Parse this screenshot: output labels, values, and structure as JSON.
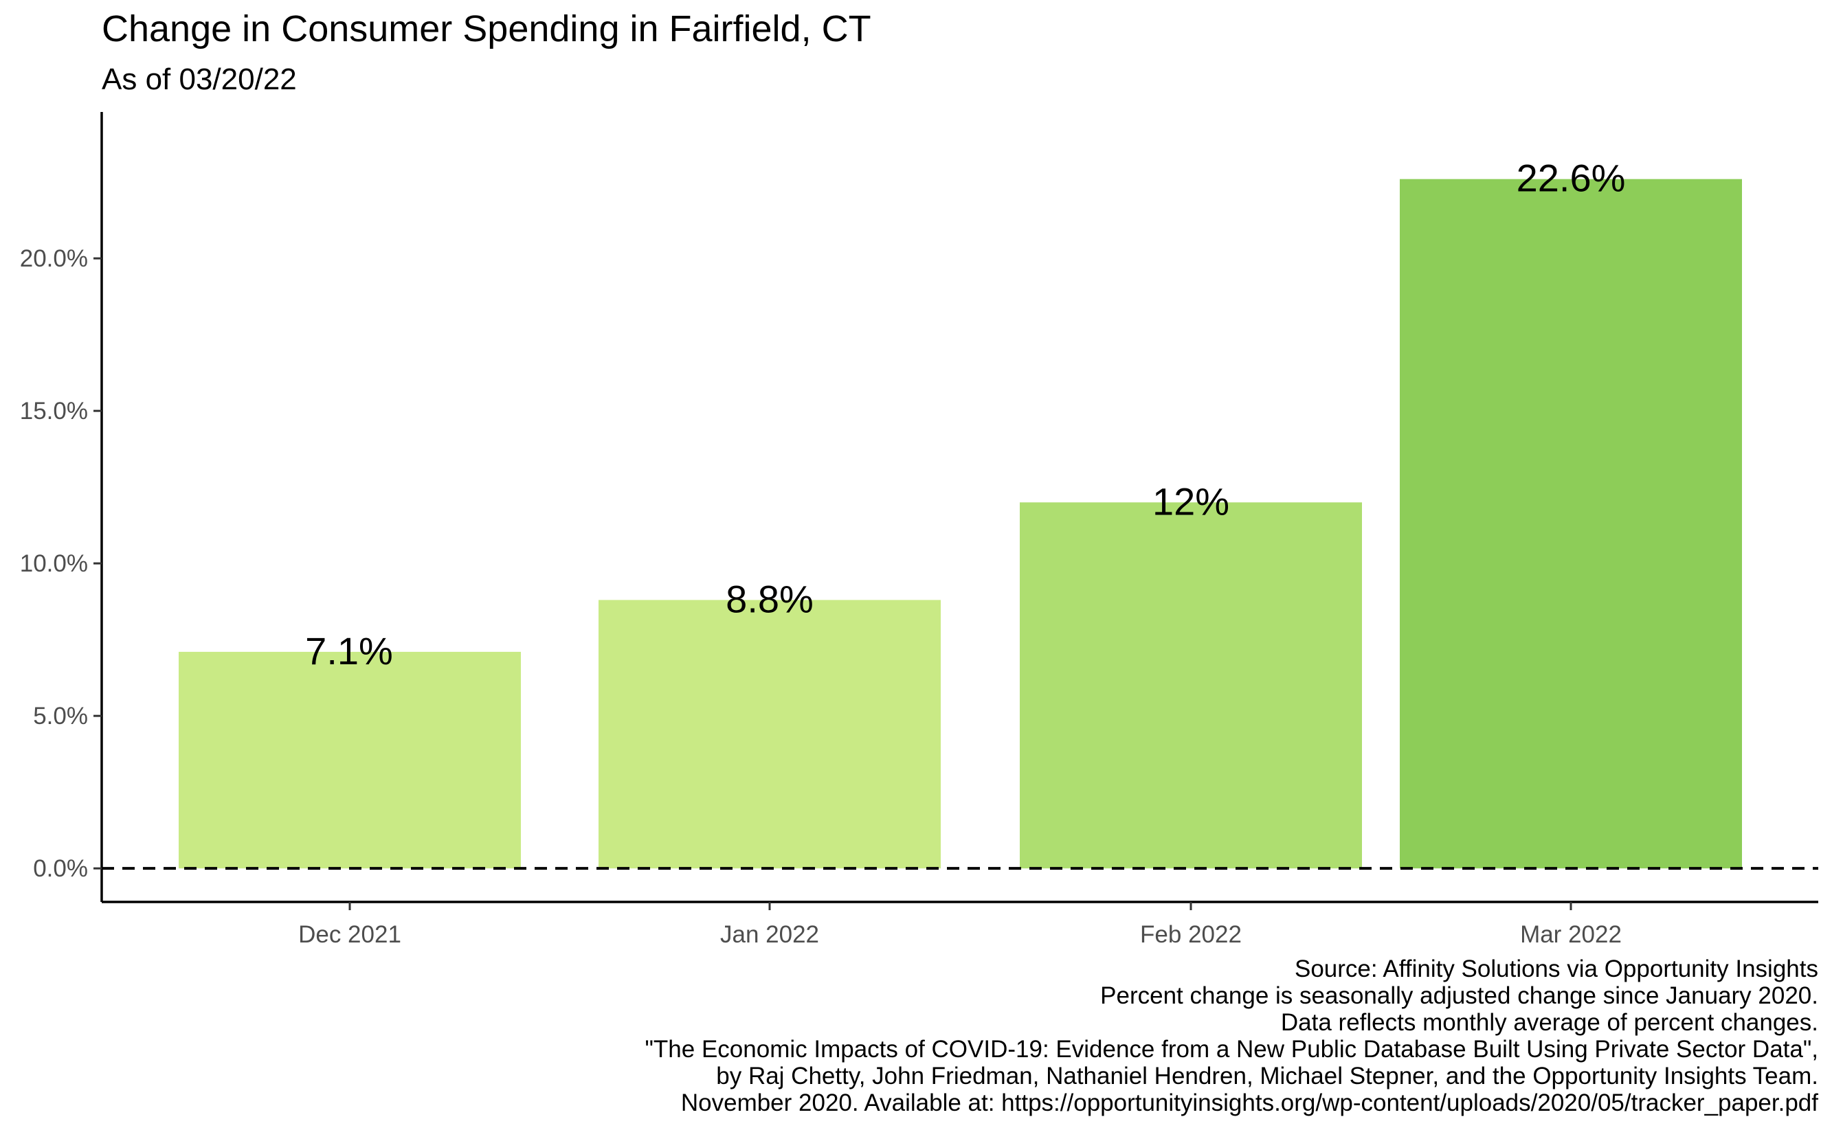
{
  "chart_data": {
    "type": "bar",
    "title": "Change in Consumer Spending in Fairfield, CT",
    "subtitle": "As of 03/20/22",
    "xlabel": "",
    "ylabel": "",
    "categories": [
      "Dec 2021",
      "Jan 2022",
      "Feb 2022",
      "Mar 2022"
    ],
    "values": [
      7.1,
      8.8,
      12.0,
      22.6
    ],
    "value_labels": [
      "7.1%",
      "8.8%",
      "12%",
      "22.6%"
    ],
    "bar_colors": [
      "#c9ea85",
      "#c9ea85",
      "#aede70",
      "#8dcd58"
    ],
    "ylim": [
      -1.1,
      24.8
    ],
    "y_ticks": [
      0,
      5,
      10,
      15,
      20
    ],
    "y_tick_labels": [
      "0.0%",
      "5.0%",
      "10.0%",
      "15.0%",
      "20.0%"
    ],
    "reference_line": {
      "y": 0,
      "style": "dashed"
    },
    "grid": false,
    "legend": "none",
    "caption": [
      "Source: Affinity Solutions via Opportunity Insights",
      "Percent change is seasonally adjusted change since January 2020.",
      "Data reflects monthly average of percent changes.",
      "\"The Economic Impacts of COVID-19: Evidence from a New Public Database Built Using Private Sector Data\",",
      "by Raj Chetty, John Friedman, Nathaniel Hendren, Michael Stepner, and the Opportunity Insights Team.",
      "November 2020. Available at: https://opportunityinsights.org/wp-content/uploads/2020/05/tracker_paper.pdf"
    ]
  }
}
